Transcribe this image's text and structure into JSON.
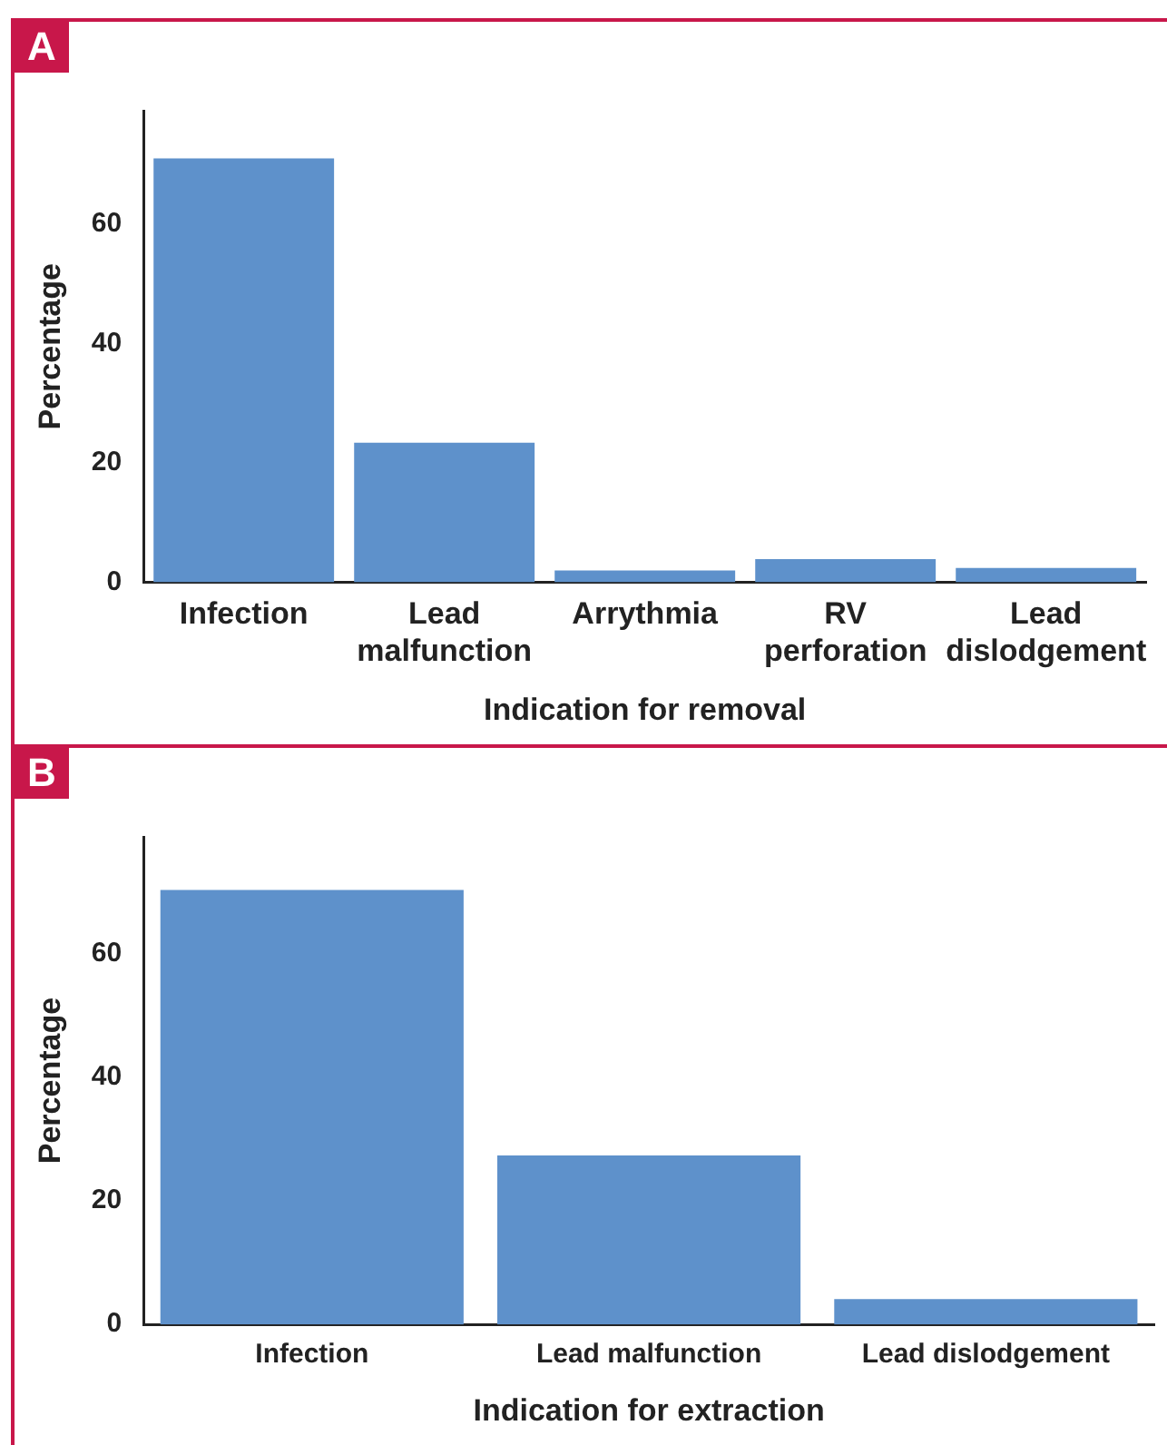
{
  "chart_data": [
    {
      "type": "bar",
      "annotations": [
        "A"
      ],
      "xlabel": "Indication for removal",
      "ylabel": "Percentage",
      "categories": [
        "Infection",
        "Lead malfunction",
        "Arrythmia",
        "RV perforation",
        "Lead dislodgement"
      ],
      "values": [
        71,
        23.4,
        2.0,
        3.9,
        2.4
      ],
      "color": "#5e91cb",
      "ylim": [
        0,
        79
      ],
      "yticks": [
        0,
        20,
        40,
        60
      ],
      "grid": false,
      "legend": false
    },
    {
      "type": "bar",
      "annotations": [
        "B"
      ],
      "xlabel": "Indication for extraction",
      "ylabel": "Percentage",
      "categories": [
        "Infection",
        "Lead malfunction",
        "Lead dislodgement"
      ],
      "values": [
        70.4,
        27.4,
        4.1
      ],
      "color": "#5e91cb",
      "ylim": [
        0,
        79
      ],
      "yticks": [
        0,
        20,
        40,
        60
      ],
      "grid": false,
      "legend": false
    }
  ]
}
